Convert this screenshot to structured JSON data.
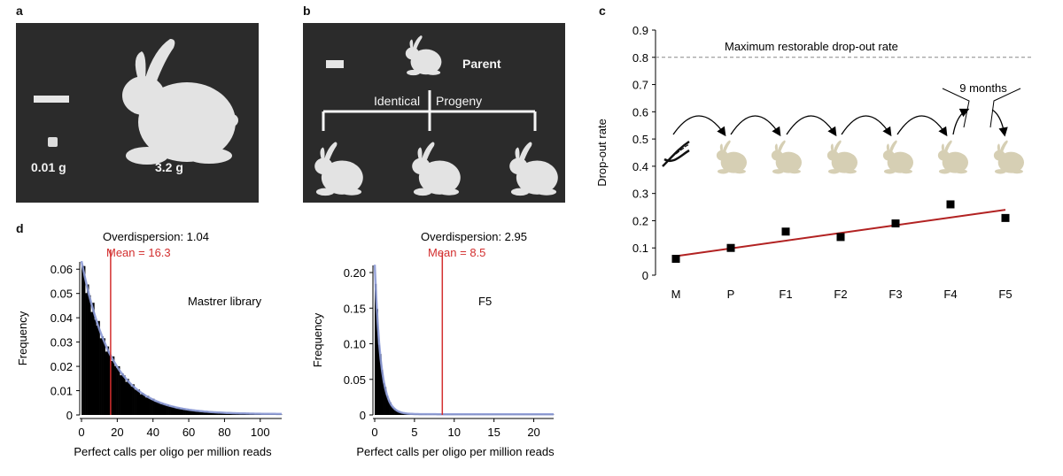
{
  "panels": {
    "a": {
      "label": "a",
      "mass_small": "0.01 g",
      "mass_large": "3.2 g"
    },
    "b": {
      "label": "b",
      "parent": "Parent",
      "identical": "Identical",
      "progeny": "Progeny"
    },
    "c": {
      "label": "c",
      "dna_icon": "dna-helix-icon",
      "bunny_icon": "bunny-icon",
      "time_note": "9 months"
    },
    "d": {
      "label": "d"
    }
  },
  "colors": {
    "photo_bg": "#2b2b2b",
    "bunny": "#e3e3e3",
    "bunny_tan": "#d6cfb4",
    "fit_line": "#b22222",
    "mean_line": "#d32f2f",
    "fit_curve": "#8c9ad6",
    "bars": "#000000"
  },
  "chart_data": [
    {
      "type": "scatter",
      "ylabel": "Drop-out rate",
      "categories": [
        "M",
        "P",
        "F1",
        "F2",
        "F3",
        "F4",
        "F5"
      ],
      "values": [
        0.06,
        0.1,
        0.16,
        0.14,
        0.19,
        0.26,
        0.21
      ],
      "trendline": {
        "start": 0.07,
        "end": 0.24
      },
      "ylim": [
        0,
        0.9
      ],
      "yticks": [
        "0",
        "0.1",
        "0.2",
        "0.3",
        "0.4",
        "0.5",
        "0.6",
        "0.7",
        "0.8",
        "0.9"
      ],
      "reference_line": {
        "y": 0.8,
        "label": "Maximum restorable drop-out rate"
      }
    },
    {
      "type": "bar",
      "title": "Overdispersion: 1.04",
      "mean_label": "Mean = 16.3",
      "mean": 16.3,
      "annotation": "Mastrer library",
      "xlabel": "Perfect calls per oligo per million reads",
      "ylabel": "Frequency",
      "xlim": [
        0,
        112
      ],
      "ylim": [
        0,
        0.063
      ],
      "xticks": [
        "0",
        "20",
        "40",
        "60",
        "80",
        "100"
      ],
      "yticks": [
        "0",
        "0.01",
        "0.02",
        "0.03",
        "0.04",
        "0.05",
        "0.06"
      ],
      "decay_start": 0.063,
      "decay_scale": 17
    },
    {
      "type": "bar",
      "title": "Overdispersion: 2.95",
      "mean_label": "Mean = 8.5",
      "mean": 8.5,
      "annotation": "F5",
      "xlabel": "Perfect calls per oligo per million reads",
      "ylabel": "Frequency",
      "xlim": [
        0,
        22.5
      ],
      "ylim": [
        0,
        0.21
      ],
      "xticks": [
        "0",
        "5",
        "10",
        "15",
        "20"
      ],
      "yticks": [
        "0",
        "0.05",
        "0.10",
        "0.15",
        "0.20"
      ],
      "decay_start": 0.21,
      "decay_scale": 0.75
    }
  ]
}
